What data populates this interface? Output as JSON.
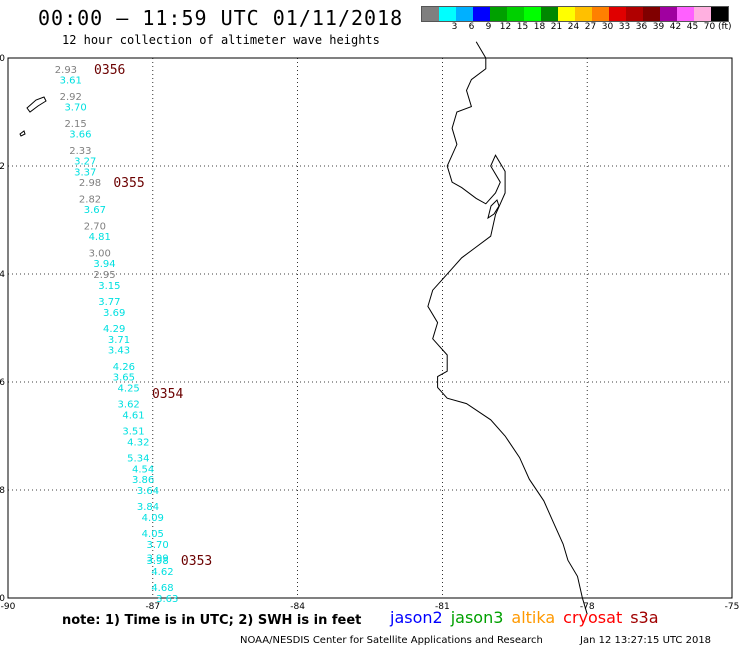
{
  "header": {
    "title": "00:00 – 11:59 UTC 01/11/2018",
    "subtitle": "12 hour collection of altimeter wave heights"
  },
  "legend": {
    "unit": "(ft)",
    "swatches": [
      {
        "color": "#7f7f7f",
        "label": ""
      },
      {
        "color": "#00ffff",
        "label": "3"
      },
      {
        "color": "#00b0ff",
        "label": "6"
      },
      {
        "color": "#0000ff",
        "label": "9"
      },
      {
        "color": "#00a000",
        "label": "12"
      },
      {
        "color": "#00d000",
        "label": "15"
      },
      {
        "color": "#00ff00",
        "label": "18"
      },
      {
        "color": "#008800",
        "label": "21"
      },
      {
        "color": "#ffff00",
        "label": "24"
      },
      {
        "color": "#ffc000",
        "label": "27"
      },
      {
        "color": "#ff8000",
        "label": "30"
      },
      {
        "color": "#e00000",
        "label": "33"
      },
      {
        "color": "#b00000",
        "label": "36"
      },
      {
        "color": "#800000",
        "label": "39"
      },
      {
        "color": "#a000a0",
        "label": "42"
      },
      {
        "color": "#ff60ff",
        "label": "45"
      },
      {
        "color": "#ffb0e0",
        "label": "70"
      },
      {
        "color": "#000000",
        "label": ""
      }
    ]
  },
  "axes": {
    "x_ticks": [
      "-90",
      "-87",
      "-84",
      "-81",
      "-78",
      "-75"
    ],
    "y_ticks": [
      "0",
      "-2",
      "-4",
      "-6",
      "-8",
      "-10"
    ]
  },
  "colors": {
    "gray": "#808080",
    "cyan": "#00e0e0",
    "time": "#6b0000"
  },
  "time_markers": [
    {
      "label": "0356",
      "lon": -88.3,
      "lat": -0.2
    },
    {
      "label": "0355",
      "lon": -87.9,
      "lat": -2.3
    },
    {
      "label": "0354",
      "lon": -87.1,
      "lat": -6.2
    },
    {
      "label": "0353",
      "lon": -86.5,
      "lat": -9.3
    }
  ],
  "wave_heights": [
    {
      "v": "2.93",
      "lon": -88.8,
      "lat": -0.2,
      "c": "gray"
    },
    {
      "v": "3.61",
      "lon": -88.7,
      "lat": -0.4,
      "c": "cyan"
    },
    {
      "v": "2.92",
      "lon": -88.7,
      "lat": -0.7,
      "c": "gray"
    },
    {
      "v": "3.70",
      "lon": -88.6,
      "lat": -0.9,
      "c": "cyan"
    },
    {
      "v": "2.15",
      "lon": -88.6,
      "lat": -1.2,
      "c": "gray"
    },
    {
      "v": "3.66",
      "lon": -88.5,
      "lat": -1.4,
      "c": "cyan"
    },
    {
      "v": "2.33",
      "lon": -88.5,
      "lat": -1.7,
      "c": "gray"
    },
    {
      "v": "3.27",
      "lon": -88.4,
      "lat": -1.9,
      "c": "cyan"
    },
    {
      "v": "3.37",
      "lon": -88.4,
      "lat": -2.1,
      "c": "cyan"
    },
    {
      "v": "2.98",
      "lon": -88.3,
      "lat": -2.3,
      "c": "gray"
    },
    {
      "v": "2.82",
      "lon": -88.3,
      "lat": -2.6,
      "c": "gray"
    },
    {
      "v": "3.67",
      "lon": -88.2,
      "lat": -2.8,
      "c": "cyan"
    },
    {
      "v": "2.70",
      "lon": -88.2,
      "lat": -3.1,
      "c": "gray"
    },
    {
      "v": "4.81",
      "lon": -88.1,
      "lat": -3.3,
      "c": "cyan"
    },
    {
      "v": "3.00",
      "lon": -88.1,
      "lat": -3.6,
      "c": "gray"
    },
    {
      "v": "3.94",
      "lon": -88.0,
      "lat": -3.8,
      "c": "cyan"
    },
    {
      "v": "2.95",
      "lon": -88.0,
      "lat": -4.0,
      "c": "gray"
    },
    {
      "v": "3.15",
      "lon": -87.9,
      "lat": -4.2,
      "c": "cyan"
    },
    {
      "v": "3.77",
      "lon": -87.9,
      "lat": -4.5,
      "c": "cyan"
    },
    {
      "v": "3.69",
      "lon": -87.8,
      "lat": -4.7,
      "c": "cyan"
    },
    {
      "v": "4.29",
      "lon": -87.8,
      "lat": -5.0,
      "c": "cyan"
    },
    {
      "v": "3.71",
      "lon": -87.7,
      "lat": -5.2,
      "c": "cyan"
    },
    {
      "v": "3.43",
      "lon": -87.7,
      "lat": -5.4,
      "c": "cyan"
    },
    {
      "v": "4.26",
      "lon": -87.6,
      "lat": -5.7,
      "c": "cyan"
    },
    {
      "v": "3.65",
      "lon": -87.6,
      "lat": -5.9,
      "c": "cyan"
    },
    {
      "v": "4.25",
      "lon": -87.5,
      "lat": -6.1,
      "c": "cyan"
    },
    {
      "v": "3.62",
      "lon": -87.5,
      "lat": -6.4,
      "c": "cyan"
    },
    {
      "v": "4.61",
      "lon": -87.4,
      "lat": -6.6,
      "c": "cyan"
    },
    {
      "v": "3.51",
      "lon": -87.4,
      "lat": -6.9,
      "c": "cyan"
    },
    {
      "v": "4.32",
      "lon": -87.3,
      "lat": -7.1,
      "c": "cyan"
    },
    {
      "v": "5.34",
      "lon": -87.3,
      "lat": -7.4,
      "c": "cyan"
    },
    {
      "v": "4.54",
      "lon": -87.2,
      "lat": -7.6,
      "c": "cyan"
    },
    {
      "v": "3.86",
      "lon": -87.2,
      "lat": -7.8,
      "c": "cyan"
    },
    {
      "v": "3.64",
      "lon": -87.1,
      "lat": -8.0,
      "c": "cyan"
    },
    {
      "v": "3.84",
      "lon": -87.1,
      "lat": -8.3,
      "c": "cyan"
    },
    {
      "v": "4.09",
      "lon": -87.0,
      "lat": -8.5,
      "c": "cyan"
    },
    {
      "v": "4.05",
      "lon": -87.0,
      "lat": -8.8,
      "c": "cyan"
    },
    {
      "v": "3.70",
      "lon": -86.9,
      "lat": -9.0,
      "c": "cyan"
    },
    {
      "v": "3.99",
      "lon": -86.9,
      "lat": -9.25,
      "c": "cyan"
    },
    {
      "v": "3.98",
      "lon": -86.9,
      "lat": -9.3,
      "c": "cyan"
    },
    {
      "v": "4.62",
      "lon": -86.8,
      "lat": -9.5,
      "c": "cyan"
    },
    {
      "v": "4.68",
      "lon": -86.8,
      "lat": -9.8,
      "c": "cyan"
    },
    {
      "v": "3.63",
      "lon": -86.7,
      "lat": -10.0,
      "c": "cyan"
    }
  ],
  "footer": {
    "note": "note:  1) Time is in UTC;  2) SWH is in feet",
    "satellites": [
      {
        "name": "jason2",
        "color": "#0000ff"
      },
      {
        "name": "jason3",
        "color": "#00a000"
      },
      {
        "name": "altika",
        "color": "#ff9900"
      },
      {
        "name": "cryosat",
        "color": "#ff0000"
      },
      {
        "name": "s3a",
        "color": "#a00000"
      }
    ],
    "credit": "NOAA/NESDIS Center for Satellite Applications and Research",
    "timestamp": "Jan 12 13:27:15 UTC 2018"
  }
}
